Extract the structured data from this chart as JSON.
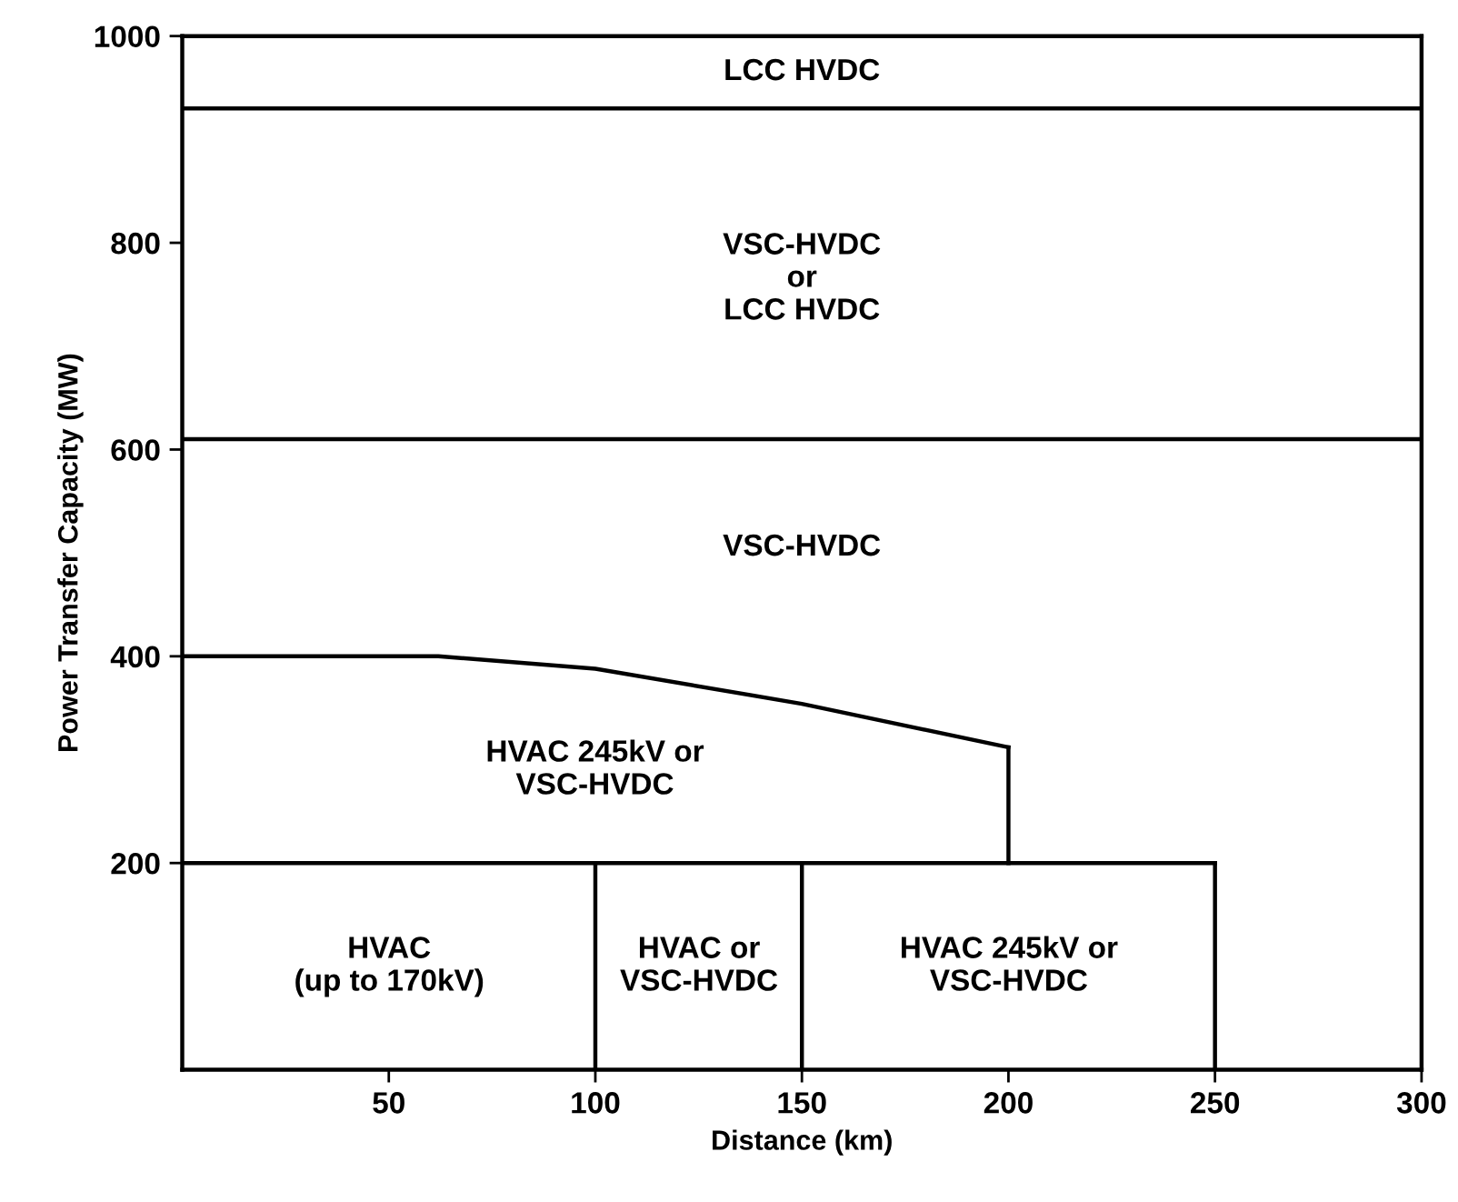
{
  "chart_data": {
    "type": "line",
    "xlabel": "Distance (km)",
    "ylabel": "Power Transfer Capacity (MW)",
    "xlim": [
      0,
      300
    ],
    "ylim": [
      0,
      1000
    ],
    "xticks": [
      50,
      100,
      150,
      200,
      250,
      300
    ],
    "yticks": [
      200,
      400,
      600,
      800,
      1000
    ],
    "grid": false,
    "legend": false,
    "marker": "none",
    "line_style": "solid",
    "series": [
      {
        "color": "#000000",
        "x": [
          0,
          300
        ],
        "values": [
          930,
          930
        ]
      },
      {
        "color": "#000000",
        "x": [
          0,
          300
        ],
        "values": [
          610,
          610
        ]
      },
      {
        "color": "#000000",
        "x": [
          0,
          62,
          100,
          150,
          200
        ],
        "values": [
          400,
          400,
          388,
          354,
          312
        ]
      },
      {
        "color": "#000000",
        "x": [
          200,
          200
        ],
        "values": [
          312,
          200
        ]
      },
      {
        "color": "#000000",
        "x": [
          0,
          250
        ],
        "values": [
          200,
          200
        ]
      },
      {
        "color": "#000000",
        "x": [
          100,
          100
        ],
        "values": [
          0,
          200
        ]
      },
      {
        "color": "#000000",
        "x": [
          150,
          150
        ],
        "values": [
          0,
          200
        ]
      },
      {
        "color": "#000000",
        "x": [
          250,
          250
        ],
        "values": [
          0,
          200
        ]
      }
    ],
    "annotations": [
      "LCC HVDC",
      "VSC-HVDC\nor\nLCC HVDC",
      "VSC-HVDC",
      "HVAC 245kV or\nVSC-HVDC",
      "HVAC\n(up to 170kV)",
      "HVAC or\nVSC-HVDC",
      "HVAC 245kV or\nVSC-HVDC"
    ]
  }
}
